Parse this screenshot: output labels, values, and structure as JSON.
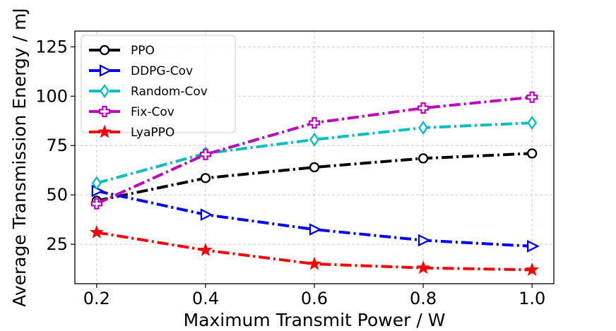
{
  "chart_data": {
    "type": "line",
    "title": "",
    "xlabel": "Maximum Transmit Power / W",
    "ylabel": "Average Transmission Energy / mJ",
    "x": [
      0.2,
      0.4,
      0.6,
      0.8,
      1.0
    ],
    "x_tick_labels": [
      "0.2",
      "0.4",
      "0.6",
      "0.8",
      "1.0"
    ],
    "y_ticks": [
      25,
      50,
      75,
      100,
      125
    ],
    "y_tick_labels": [
      "25",
      "50",
      "75",
      "100",
      "125"
    ],
    "xlim": [
      0.16,
      1.04
    ],
    "ylim": [
      5,
      133
    ],
    "grid": true,
    "legend_position": "top-left",
    "series": [
      {
        "name": "PPO",
        "color": "#000000",
        "marker": "circle",
        "values": [
          47,
          58.5,
          64,
          68.5,
          71
        ]
      },
      {
        "name": "DDPG-Cov",
        "color": "#0000ff",
        "marker": "triangle-right",
        "values": [
          52,
          40,
          32.5,
          27,
          24
        ]
      },
      {
        "name": "Random-Cov",
        "color": "#00bfbf",
        "marker": "diamond",
        "values": [
          56,
          71,
          78,
          84,
          86.5
        ]
      },
      {
        "name": "Fix-Cov",
        "color": "#bf00bf",
        "marker": "plus",
        "values": [
          45.5,
          70.5,
          86.5,
          94,
          99.5
        ]
      },
      {
        "name": "LyaPPO",
        "color": "#ff0000",
        "marker": "star",
        "values": [
          31,
          22,
          15,
          13,
          12
        ]
      }
    ]
  }
}
